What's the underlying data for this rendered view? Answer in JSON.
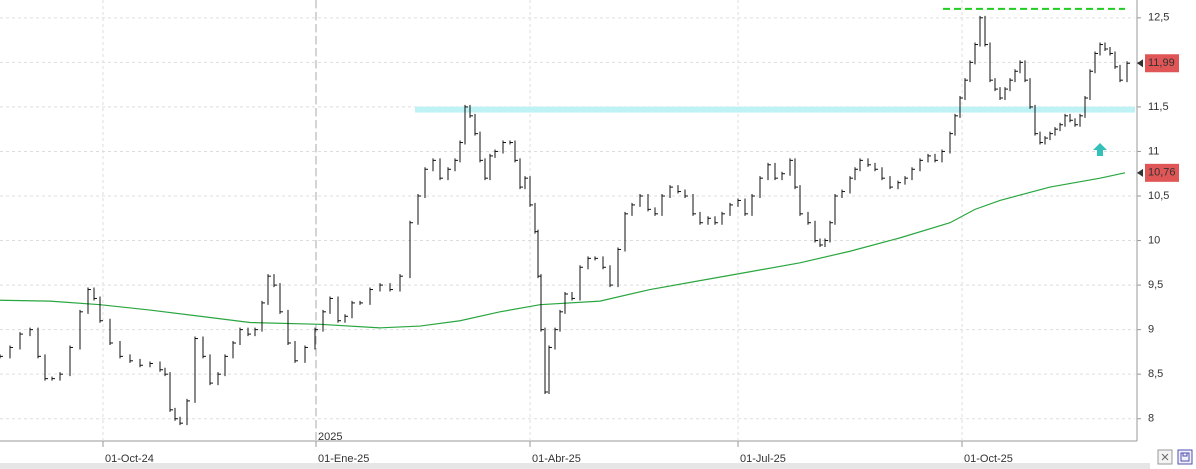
{
  "chart_data": {
    "type": "price-bars",
    "x": [
      0,
      10,
      20,
      30,
      38,
      45,
      52,
      60,
      70,
      80,
      88,
      94,
      100,
      110,
      120,
      130,
      140,
      150,
      160,
      165,
      170,
      175,
      180,
      187,
      195,
      203,
      210,
      218,
      225,
      233,
      240,
      248,
      255,
      262,
      268,
      274,
      280,
      288,
      295,
      305,
      315,
      323,
      330,
      338,
      345,
      352,
      360,
      370,
      380,
      390,
      400,
      410,
      418,
      425,
      433,
      440,
      448,
      455,
      460,
      465,
      470,
      475,
      480,
      485,
      490,
      495,
      503,
      510,
      515,
      520,
      525,
      530,
      535,
      538,
      541,
      545,
      549,
      555,
      560,
      565,
      572,
      580,
      588,
      595,
      603,
      610,
      618,
      625,
      632,
      640,
      648,
      655,
      662,
      670,
      678,
      685,
      693,
      700,
      708,
      715,
      722,
      730,
      738,
      745,
      752,
      760,
      768,
      775,
      782,
      790,
      795,
      800,
      808,
      815,
      820,
      825,
      830,
      835,
      842,
      850,
      855,
      860,
      868,
      875,
      882,
      890,
      898,
      905,
      912,
      920,
      928,
      935,
      942,
      950,
      955,
      960,
      965,
      970,
      975,
      980,
      985,
      990,
      995,
      1000,
      1005,
      1010,
      1015,
      1020,
      1025,
      1030,
      1035,
      1040,
      1045,
      1050,
      1055,
      1060,
      1065,
      1070,
      1075,
      1080,
      1085,
      1090,
      1095,
      1100,
      1105,
      1110,
      1115,
      1120,
      1127
    ],
    "close": [
      8.7,
      8.8,
      8.95,
      9.0,
      8.7,
      8.45,
      8.45,
      8.5,
      8.8,
      9.2,
      9.45,
      9.35,
      9.1,
      8.85,
      8.7,
      8.65,
      8.6,
      8.62,
      8.55,
      8.5,
      8.1,
      8.0,
      7.95,
      8.2,
      8.9,
      8.7,
      8.4,
      8.5,
      8.7,
      8.85,
      9.0,
      8.95,
      9.0,
      9.3,
      9.6,
      9.5,
      9.2,
      8.85,
      8.65,
      8.8,
      9.0,
      9.2,
      9.35,
      9.1,
      9.15,
      9.3,
      9.3,
      9.45,
      9.5,
      9.45,
      9.6,
      10.2,
      10.5,
      10.8,
      10.9,
      10.7,
      10.8,
      10.9,
      11.1,
      11.5,
      11.4,
      11.2,
      10.9,
      10.7,
      10.95,
      11.0,
      11.1,
      11.1,
      10.9,
      10.6,
      10.7,
      10.4,
      10.1,
      9.6,
      9.0,
      8.3,
      8.8,
      9.0,
      9.2,
      9.4,
      9.35,
      9.7,
      9.8,
      9.8,
      9.7,
      9.5,
      9.9,
      10.3,
      10.4,
      10.5,
      10.35,
      10.3,
      10.5,
      10.6,
      10.55,
      10.5,
      10.3,
      10.2,
      10.25,
      10.2,
      10.3,
      10.4,
      10.45,
      10.3,
      10.5,
      10.7,
      10.85,
      10.7,
      10.75,
      10.9,
      10.6,
      10.3,
      10.2,
      10.0,
      9.95,
      10.0,
      10.2,
      10.5,
      10.55,
      10.7,
      10.8,
      10.9,
      10.85,
      10.8,
      10.7,
      10.6,
      10.65,
      10.7,
      10.8,
      10.9,
      10.95,
      10.9,
      11.0,
      11.2,
      11.4,
      11.6,
      11.8,
      12.0,
      12.2,
      12.5,
      12.2,
      11.8,
      11.7,
      11.6,
      11.7,
      11.8,
      11.9,
      12.0,
      11.8,
      11.5,
      11.2,
      11.1,
      11.15,
      11.2,
      11.25,
      11.3,
      11.4,
      11.35,
      11.3,
      11.4,
      11.6,
      11.9,
      12.1,
      12.2,
      12.15,
      12.1,
      11.95,
      11.8,
      11.99
    ],
    "color": "#111111",
    "ma": {
      "color": "#2aa640",
      "x": [
        0,
        50,
        100,
        150,
        200,
        250,
        320,
        380,
        420,
        460,
        500,
        540,
        600,
        650,
        700,
        750,
        800,
        850,
        900,
        950,
        975,
        1000,
        1050,
        1100,
        1125
      ],
      "values": [
        9.33,
        9.32,
        9.28,
        9.22,
        9.15,
        9.08,
        9.06,
        9.02,
        9.04,
        9.1,
        9.2,
        9.28,
        9.32,
        9.45,
        9.55,
        9.65,
        9.75,
        9.88,
        10.03,
        10.2,
        10.35,
        10.45,
        10.6,
        10.7,
        10.76
      ]
    },
    "xlim": [
      0,
      1135
    ],
    "ylim": [
      7.75,
      12.7
    ],
    "yticks": [
      8,
      {
        "value": 8.5,
        "label": "8,5"
      },
      9,
      {
        "value": 9.5,
        "label": "9,5"
      },
      10,
      {
        "value": 10.5,
        "label": "10,5"
      },
      11,
      {
        "value": 11.5,
        "label": "11,5"
      },
      12,
      {
        "value": 12.5,
        "label": "12,5"
      }
    ],
    "xticks": [
      {
        "value": 103,
        "label": "01-Oct-24"
      },
      {
        "value": 316,
        "label": "01-Ene-25"
      },
      {
        "value": 530,
        "label": "01-Abr-25"
      },
      {
        "value": 738,
        "label": "01-Jul-25"
      },
      {
        "value": 962,
        "label": "01-Oct-25"
      }
    ],
    "year_marker": {
      "value": 316,
      "label": "2025"
    },
    "grid": true,
    "resistance": {
      "value": 12.6,
      "x": [
        943,
        1125
      ],
      "color": "#22cc22"
    },
    "support_band": {
      "value": 11.47,
      "x": [
        415,
        1135
      ],
      "color": "#bff2f5"
    },
    "price_tags": [
      {
        "value": 11.99,
        "label": "11,99"
      },
      {
        "value": 10.76,
        "label": "10,76"
      }
    ],
    "tag_color": "#e05555"
  }
}
